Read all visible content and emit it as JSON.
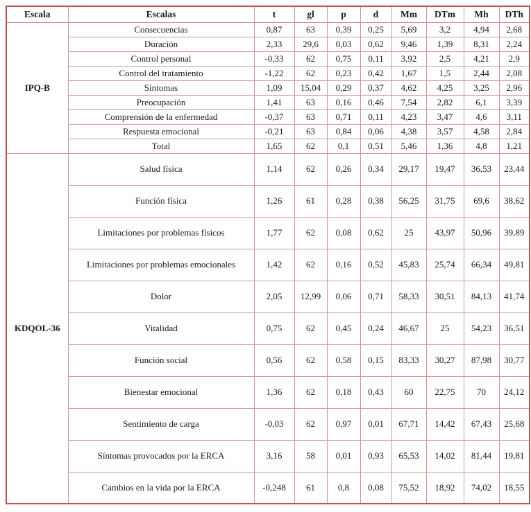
{
  "table": {
    "colors": {
      "outer_border": "#b85450",
      "inner_border": "#d49595",
      "text": "#1b1b1b",
      "background": "#ffffff"
    },
    "columns": [
      "Escala",
      "Escalas",
      "t",
      "gl",
      "p",
      "d",
      "Mm",
      "DTm",
      "Mh",
      "DTh"
    ],
    "groups": [
      {
        "name": "IPQ-B",
        "rows": [
          {
            "label": "Consecuencias",
            "values": [
              "0,87",
              "63",
              "0,39",
              "0,25",
              "5,69",
              "3,2",
              "4,94",
              "2,68"
            ]
          },
          {
            "label": "Duración",
            "values": [
              "2,33",
              "29,6",
              "0,03",
              "0,62",
              "9,46",
              "1,39",
              "8,31",
              "2,24"
            ]
          },
          {
            "label": "Control personal",
            "values": [
              "-0,33",
              "62",
              "0,75",
              "0,11",
              "3,92",
              "2,5",
              "4,21",
              "2,9"
            ]
          },
          {
            "label": "Control del tratamiento",
            "values": [
              "-1,22",
              "62",
              "0,23",
              "0,42",
              "1,67",
              "1,5",
              "2,44",
              "2,08"
            ]
          },
          {
            "label": "Síntomas",
            "values": [
              "1,09",
              "15,04",
              "0,29",
              "0,37",
              "4,62",
              "4,25",
              "3,25",
              "2,96"
            ]
          },
          {
            "label": "Preocupación",
            "values": [
              "1,41",
              "63",
              "0,16",
              "0,46",
              "7,54",
              "2,82",
              "6,1",
              "3,39"
            ]
          },
          {
            "label": "Comprensión de la enfermedad",
            "values": [
              "-0,37",
              "63",
              "0,71",
              "0,11",
              "4,23",
              "3,47",
              "4,6",
              "3,11"
            ]
          },
          {
            "label": "Respuesta emocional",
            "values": [
              "-0,21",
              "63",
              "0,84",
              "0,06",
              "4,38",
              "3,57",
              "4,58",
              "2,84"
            ]
          },
          {
            "label": "Total",
            "values": [
              "1,65",
              "62",
              "0,1",
              "0,51",
              "5,46",
              "1,36",
              "4,8",
              "1,21"
            ]
          }
        ]
      },
      {
        "name": "KDQOL-36",
        "rows": [
          {
            "label": "Salud física",
            "values": [
              "1,14",
              "62",
              "0,26",
              "0,34",
              "29,17",
              "19,47",
              "36,53",
              "23,44"
            ]
          },
          {
            "label": "Función física",
            "values": [
              "1,26",
              "61",
              "0,28",
              "0,38",
              "56,25",
              "31,75",
              "69,6",
              "38,62"
            ]
          },
          {
            "label": "Limitaciones por problemas físicos",
            "values": [
              "1,77",
              "62",
              "0,08",
              "0,62",
              "25",
              "43,97",
              "50,96",
              "39,89"
            ]
          },
          {
            "label": "Limitaciones por problemas emocionales",
            "values": [
              "1,42",
              "62",
              "0,16",
              "0,52",
              "45,83",
              "25,74",
              "66,34",
              "49,81"
            ]
          },
          {
            "label": "Dolor",
            "values": [
              "2,05",
              "12,99",
              "0,06",
              "0,71",
              "58,33",
              "30,51",
              "84,13",
              "41,74"
            ]
          },
          {
            "label": "Vitalidad",
            "values": [
              "0,75",
              "62",
              "0,45",
              "0,24",
              "46,67",
              "25",
              "54,23",
              "36,51"
            ]
          },
          {
            "label": "Función social",
            "values": [
              "0,56",
              "62",
              "0,58",
              "0,15",
              "83,33",
              "30,27",
              "87,98",
              "30,77"
            ]
          },
          {
            "label": "Bienestar emocional",
            "values": [
              "1,36",
              "62",
              "0,18",
              "0,43",
              "60",
              "22,75",
              "70",
              "24,12"
            ]
          },
          {
            "label": "Sentimiento de carga",
            "values": [
              "-0,03",
              "62",
              "0,97",
              "0,01",
              "67,71",
              "14,42",
              "67,43",
              "25,68"
            ]
          },
          {
            "label": "Síntomas provocados por la ERCA",
            "values": [
              "3,16",
              "58",
              "0,01",
              "0,93",
              "65,53",
              "14,02",
              "81,44",
              "19,81"
            ]
          },
          {
            "label": "Cambios en la vida por la ERCA",
            "values": [
              "-0,248",
              "61",
              "0,8",
              "0,08",
              "75,52",
              "18,92",
              "74,02",
              "18,55"
            ]
          }
        ]
      }
    ]
  }
}
